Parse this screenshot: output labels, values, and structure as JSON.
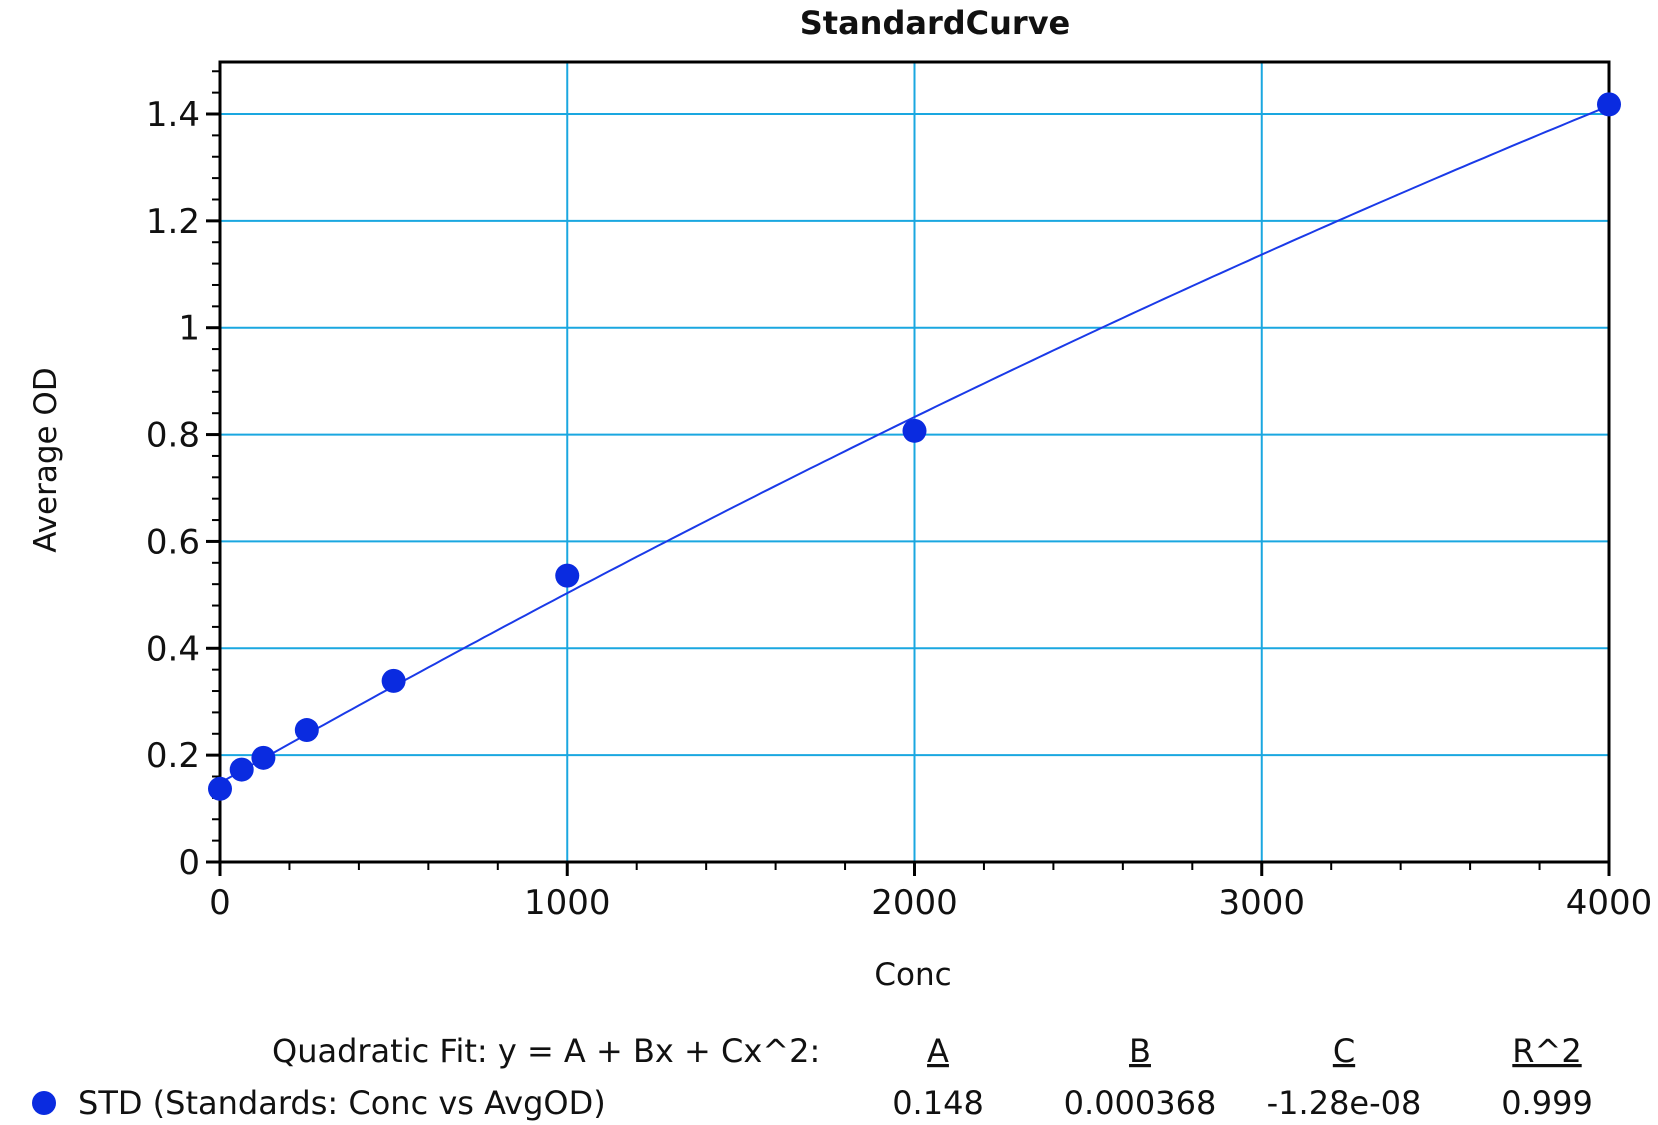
{
  "chart_data": {
    "type": "scatter",
    "title": "StandardCurve",
    "xlabel": "Conc",
    "ylabel": "Average OD",
    "xlim": [
      0,
      4000
    ],
    "ylim": [
      0,
      1.5
    ],
    "x_ticks": [
      0,
      1000,
      2000,
      3000,
      4000
    ],
    "x_tick_labels": [
      "0",
      "1000",
      "2000",
      "3000",
      "4000"
    ],
    "y_ticks": [
      0,
      0.2,
      0.4,
      0.6,
      0.8,
      1,
      1.2,
      1.4
    ],
    "y_tick_labels": [
      "0",
      "0.2",
      "0.4",
      "0.6",
      "0.8",
      "1",
      "1.2",
      "1.4"
    ],
    "grid": true,
    "series": [
      {
        "name": "STD (Standards: Conc vs AvgOD)",
        "color": "#0a2be0",
        "x": [
          0,
          62.5,
          125,
          250,
          500,
          1000,
          2000,
          4000
        ],
        "y": [
          0.137,
          0.173,
          0.195,
          0.247,
          0.339,
          0.536,
          0.807,
          1.418
        ]
      }
    ],
    "fit": {
      "label": "Quadratic Fit: y = A + Bx + Cx^2:",
      "headers": [
        "A",
        "B",
        "C",
        "R^2"
      ],
      "values": [
        "0.148",
        "0.000368",
        "-1.28e-08",
        "0.999"
      ],
      "A": 0.148,
      "B": 0.000368,
      "C": -1.28e-08,
      "color": "#1a3ae8"
    },
    "grid_color": "#1aa7e0",
    "legend_position": "bottom"
  }
}
